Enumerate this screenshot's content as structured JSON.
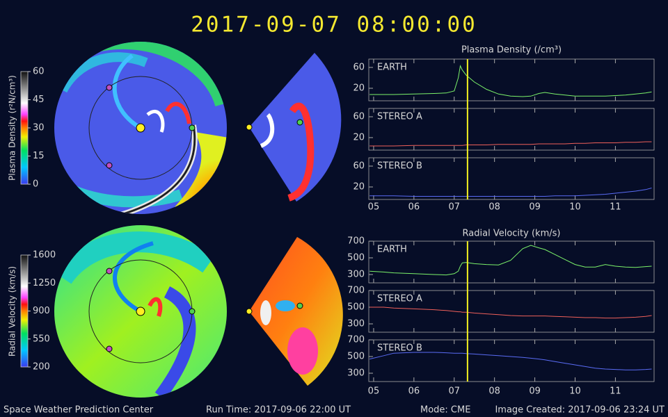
{
  "title": "2017-09-07 08:00:00",
  "colorbars": [
    {
      "label": "Plasma Density (r²N/cm³)",
      "lim": [
        0,
        60
      ],
      "ticks": [
        0,
        15,
        30,
        45,
        60
      ]
    },
    {
      "label": "Radial Velocity (km/s)",
      "lim": [
        200,
        1600
      ],
      "ticks": [
        200,
        550,
        900,
        1250,
        1600
      ]
    }
  ],
  "chart_data": [
    {
      "type": "line",
      "title": "Plasma Density (/cm³)",
      "x": [
        4.9,
        5.25,
        5.5,
        6,
        6.5,
        6.8,
        7.0,
        7.1,
        7.15,
        7.2,
        7.3,
        7.5,
        7.8,
        8.1,
        8.4,
        8.7,
        8.9,
        9.1,
        9.25,
        9.5,
        9.75,
        10,
        10.25,
        10.5,
        10.75,
        11,
        11.25,
        11.5,
        11.75,
        11.9
      ],
      "xlim": [
        4.88,
        11.96
      ],
      "xticks": [
        {
          "value": 5,
          "label": "05"
        },
        {
          "value": 6,
          "label": "06"
        },
        {
          "value": 7,
          "label": "07"
        },
        {
          "value": 8,
          "label": "08"
        },
        {
          "value": 9,
          "label": "09"
        },
        10,
        11
      ],
      "ylim": [
        -4,
        76
      ],
      "yticks": [
        20,
        60
      ],
      "marker_x": 7.33,
      "series": [
        {
          "name": "EARTH",
          "color": "#7cf26a",
          "values": [
            8,
            8,
            8,
            9,
            10,
            11,
            15,
            40,
            63,
            55,
            45,
            32,
            18,
            9,
            5,
            4,
            5,
            10,
            12,
            9,
            7,
            5,
            5,
            5,
            5,
            6,
            7,
            9,
            11,
            13
          ]
        },
        {
          "name": "STEREO A",
          "color": "#f0605a",
          "values": [
            4,
            4,
            4,
            5,
            5,
            5,
            5,
            5,
            5,
            5,
            6,
            6,
            6,
            7,
            7,
            7,
            7,
            8,
            8,
            8,
            8,
            9,
            9,
            10,
            10,
            10,
            11,
            11,
            12,
            12
          ]
        },
        {
          "name": "STEREO B",
          "color": "#5a6cf5",
          "values": [
            3,
            3,
            3,
            2,
            2,
            2,
            2,
            2,
            2,
            2,
            2,
            2,
            2,
            2,
            2,
            2,
            2,
            2,
            2,
            3,
            3,
            3,
            4,
            5,
            6,
            8,
            10,
            12,
            15,
            18
          ]
        }
      ]
    },
    {
      "type": "line",
      "title": "Radial Velocity (km/s)",
      "x": [
        4.9,
        5.25,
        5.5,
        6,
        6.5,
        6.8,
        7.0,
        7.1,
        7.15,
        7.2,
        7.3,
        7.5,
        7.8,
        8.1,
        8.4,
        8.7,
        8.9,
        9.1,
        9.25,
        9.5,
        9.75,
        10,
        10.25,
        10.5,
        10.75,
        11,
        11.25,
        11.5,
        11.75,
        11.9
      ],
      "xlim": [
        4.88,
        11.96
      ],
      "xticks": [
        {
          "value": 5,
          "label": "05"
        },
        {
          "value": 6,
          "label": "06"
        },
        {
          "value": 7,
          "label": "07"
        },
        {
          "value": 8,
          "label": "08"
        },
        {
          "value": 9,
          "label": "09"
        },
        10,
        11
      ],
      "ylim": [
        200,
        700
      ],
      "yticks": [
        300,
        500,
        700
      ],
      "marker_x": 7.33,
      "series": [
        {
          "name": "EARTH",
          "color": "#7cf26a",
          "values": [
            340,
            330,
            320,
            310,
            300,
            295,
            310,
            340,
            400,
            440,
            445,
            430,
            420,
            415,
            470,
            610,
            650,
            620,
            600,
            540,
            480,
            420,
            390,
            390,
            420,
            400,
            390,
            385,
            395,
            400
          ]
        },
        {
          "name": "STEREO A",
          "color": "#f0605a",
          "values": [
            500,
            500,
            490,
            480,
            470,
            460,
            450,
            445,
            445,
            440,
            440,
            430,
            420,
            410,
            400,
            395,
            395,
            395,
            395,
            390,
            385,
            380,
            375,
            375,
            370,
            370,
            375,
            380,
            390,
            400
          ]
        },
        {
          "name": "STEREO B",
          "color": "#5a6cf5",
          "values": [
            470,
            510,
            540,
            550,
            550,
            545,
            540,
            540,
            540,
            540,
            535,
            530,
            520,
            510,
            500,
            490,
            480,
            470,
            460,
            440,
            420,
            400,
            380,
            360,
            350,
            345,
            340,
            340,
            345,
            350
          ]
        }
      ]
    }
  ],
  "footer": {
    "left": "Space Weather Prediction Center",
    "run_time": "Run Time: 2017-09-06 22:00 UT",
    "mode": "Mode: CME",
    "created": "Image Created: 2017-09-06 23:24 UT"
  }
}
